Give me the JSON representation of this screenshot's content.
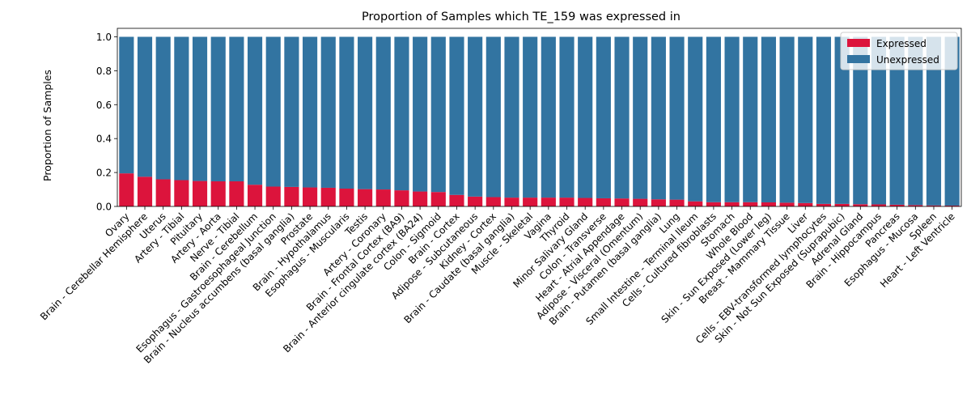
{
  "chart_data": {
    "type": "bar",
    "stacked": true,
    "title": "Proportion of Samples which TE_159 was expressed in",
    "xlabel": "",
    "ylabel": "Proportion of Samples",
    "ylim": [
      0,
      1.05
    ],
    "yticks": [
      "0.0",
      "0.2",
      "0.4",
      "0.6",
      "0.8",
      "1.0"
    ],
    "grid": false,
    "legend_position": "top-right",
    "categories": [
      "Ovary",
      "Brain - Cerebellar Hemisphere",
      "Uterus",
      "Artery - Tibial",
      "Pituitary",
      "Artery - Aorta",
      "Nerve - Tibial",
      "Brain - Cerebellum",
      "Esophagus - Gastroesophageal Junction",
      "Brain - Nucleus accumbens (basal ganglia)",
      "Prostate",
      "Brain - Hypothalamus",
      "Esophagus - Muscularis",
      "Testis",
      "Artery - Coronary",
      "Brain - Frontal Cortex (BA9)",
      "Brain - Anterior cingulate cortex (BA24)",
      "Colon - Sigmoid",
      "Brain - Cortex",
      "Adipose - Subcutaneous",
      "Kidney - Cortex",
      "Brain - Caudate (basal ganglia)",
      "Muscle - Skeletal",
      "Vagina",
      "Thyroid",
      "Minor Salivary Gland",
      "Colon - Transverse",
      "Heart - Atrial Appendage",
      "Adipose - Visceral (Omentum)",
      "Brain - Putamen (basal ganglia)",
      "Lung",
      "Small Intestine - Terminal Ileum",
      "Cells - Cultured fibroblasts",
      "Stomach",
      "Whole Blood",
      "Skin - Sun Exposed (Lower leg)",
      "Breast - Mammary Tissue",
      "Liver",
      "Cells - EBV-transformed lymphocytes",
      "Skin - Not Sun Exposed (Suprapubic)",
      "Adrenal Gland",
      "Brain - Hippocampus",
      "Pancreas",
      "Esophagus - Mucosa",
      "Spleen",
      "Heart - Left Ventricle"
    ],
    "series": [
      {
        "name": "Expressed",
        "color": "#dc143c",
        "values": [
          0.195,
          0.175,
          0.16,
          0.155,
          0.15,
          0.148,
          0.148,
          0.128,
          0.117,
          0.115,
          0.112,
          0.11,
          0.105,
          0.102,
          0.1,
          0.095,
          0.088,
          0.085,
          0.068,
          0.058,
          0.055,
          0.052,
          0.052,
          0.052,
          0.052,
          0.05,
          0.048,
          0.047,
          0.045,
          0.042,
          0.04,
          0.03,
          0.025,
          0.025,
          0.025,
          0.024,
          0.022,
          0.02,
          0.015,
          0.015,
          0.013,
          0.012,
          0.01,
          0.008,
          0.006,
          0.005
        ]
      },
      {
        "name": "Unexpressed",
        "color": "#3274a1",
        "values": [
          0.805,
          0.825,
          0.84,
          0.845,
          0.85,
          0.852,
          0.852,
          0.872,
          0.883,
          0.885,
          0.888,
          0.89,
          0.895,
          0.898,
          0.9,
          0.905,
          0.912,
          0.915,
          0.932,
          0.942,
          0.945,
          0.948,
          0.948,
          0.948,
          0.948,
          0.95,
          0.952,
          0.953,
          0.955,
          0.958,
          0.96,
          0.97,
          0.975,
          0.975,
          0.975,
          0.976,
          0.978,
          0.98,
          0.985,
          0.985,
          0.987,
          0.988,
          0.99,
          0.992,
          0.994,
          0.995
        ]
      }
    ]
  }
}
